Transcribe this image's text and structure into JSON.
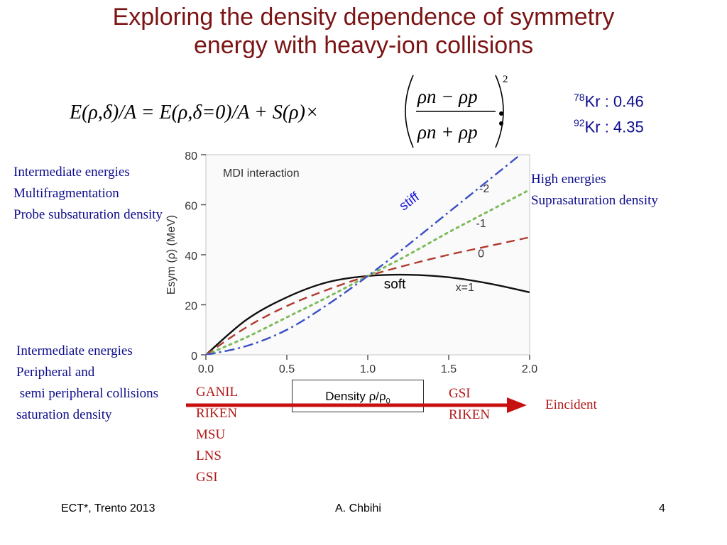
{
  "slide": {
    "title_line1": "Exploring the density dependence of symmetry",
    "title_line2": "energy with heavy-ion collisions",
    "isotopes": [
      {
        "mass": "78",
        "text": "Kr : 0.46"
      },
      {
        "mass": "92",
        "text": "Kr : 4.35"
      }
    ],
    "notes": {
      "left_top": [
        "Intermediate energies",
        "Multifragmentation",
        "Probe subsaturation density"
      ],
      "right_top": [
        "High energies",
        "Suprasaturation density"
      ],
      "left_bottom": [
        "Intermediate energies",
        "Peripheral and",
        " semi peripheral collisions",
        "saturation density"
      ],
      "facilities_low": [
        "GANIL",
        "RIKEN",
        "MSU",
        "LNS",
        "GSI"
      ],
      "facilities_high": [
        "GSI",
        "RIKEN"
      ],
      "incident": "Eincident"
    },
    "density_label": "Density ρ/ρ",
    "density_sub": "0",
    "footer": {
      "left": "ECT*, Trento 2013",
      "center": "A. Chbihi",
      "right": "4"
    }
  },
  "formula": {
    "lhs": "E(ρ,δ)/A = E(ρ,δ=0)/A + S(ρ)×",
    "numerator": "ρn − ρp",
    "denominator": "ρn + ρp",
    "power": "2"
  },
  "chart_data": {
    "type": "line",
    "title": "MDI interaction",
    "ylabel": "Esym (ρ) (MeV)",
    "xlabel": "",
    "xlim": [
      0,
      2
    ],
    "ylim": [
      0,
      80
    ],
    "xticks": [
      "0.0",
      "0.5",
      "1.0",
      "1.5",
      "2.0"
    ],
    "yticks": [
      "0",
      "20",
      "40",
      "60",
      "80"
    ],
    "series": [
      {
        "name": "x=1",
        "color": "#111111",
        "dash": "",
        "x": [
          0,
          0.25,
          0.5,
          0.75,
          1.0,
          1.25,
          1.5,
          1.75,
          2.0
        ],
        "y": [
          0,
          14,
          23,
          29,
          31.5,
          32,
          31,
          28.5,
          25
        ]
      },
      {
        "name": "0",
        "color": "#b03a2e",
        "dash": "12,7",
        "x": [
          0,
          0.25,
          0.5,
          0.75,
          1.0,
          1.25,
          1.5,
          1.75,
          2.0
        ],
        "y": [
          0,
          11,
          19.5,
          26,
          31.5,
          36,
          40,
          43.5,
          47
        ]
      },
      {
        "name": "-1",
        "color": "#7dbb5a",
        "dash": "3,6",
        "x": [
          0,
          0.25,
          0.5,
          0.75,
          1.0,
          1.25,
          1.5,
          1.75,
          2.0
        ],
        "y": [
          0,
          7,
          15,
          23,
          31.5,
          40,
          49,
          57.5,
          66
        ]
      },
      {
        "name": "-2",
        "color": "#3a4fc4",
        "dash": "14,5,3,5",
        "x": [
          0,
          0.25,
          0.5,
          0.75,
          1.0,
          1.25,
          1.5,
          1.75,
          2.0
        ],
        "y": [
          0,
          3.5,
          10,
          20,
          31.5,
          44,
          57,
          70,
          83
        ]
      }
    ],
    "annotations": [
      "stiff",
      "soft"
    ]
  }
}
